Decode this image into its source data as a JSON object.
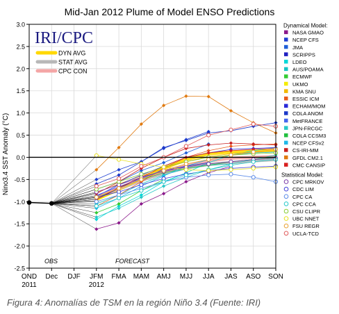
{
  "caption": "Figura 4: Anomalías de TSM en la región Niño 3.4 (Fuente: IRI)",
  "chart_data": {
    "type": "line",
    "title": "Mid-Jan 2012 Plume of Model ENSO Predictions",
    "ylabel": "Nino3.4 SST Anomaly (°C)",
    "ylim": [
      -2.5,
      3.0
    ],
    "yticks": [
      -2.5,
      -2.0,
      -1.5,
      -1.0,
      -0.5,
      0.0,
      0.5,
      1.0,
      1.5,
      2.0,
      2.5,
      3.0
    ],
    "categories": [
      "OND",
      "Dec",
      "DJF",
      "JFM",
      "FMA",
      "MAM",
      "AMJ",
      "MJJ",
      "JJA",
      "JAS",
      "ASO",
      "SON"
    ],
    "year_labels": [
      {
        "category": "OND",
        "text": "2011"
      },
      {
        "category": "JFM",
        "text": "2012"
      }
    ],
    "grid": true,
    "inset_labels": {
      "logo": "IRI/CPC",
      "obs": "OBS",
      "forecast": "FORECAST"
    },
    "averages_legend": [
      {
        "name": "DYN AVG",
        "color": "#ffd800"
      },
      {
        "name": "STAT AVG",
        "color": "#b8b8b8"
      },
      {
        "name": "CPC CON",
        "color": "#f4a6a6"
      }
    ],
    "observed": {
      "x": [
        "OND",
        "Dec"
      ],
      "values": [
        -1.02,
        -1.04
      ]
    },
    "dynamical_title": "Dynamical Model:",
    "statistical_title": "Statistical Model:",
    "series": [
      {
        "name": "NASA GMAO",
        "group": "dynamical",
        "color": "#8b1a8b",
        "values": [
          null,
          null,
          null,
          -1.62,
          -1.48,
          -1.05,
          -0.82,
          -0.55,
          -0.35,
          -0.2,
          null,
          null
        ]
      },
      {
        "name": "NCEP CFS",
        "group": "dynamical",
        "color": "#1f3fd1",
        "values": [
          null,
          null,
          null,
          -0.5,
          -0.28,
          -0.1,
          0.2,
          0.4,
          0.58,
          null,
          null,
          null
        ]
      },
      {
        "name": "JMA",
        "group": "dynamical",
        "color": "#1f5fd8",
        "values": [
          null,
          null,
          null,
          -0.72,
          -0.55,
          -0.3,
          -0.12,
          0.1,
          0.3,
          null,
          null,
          null
        ]
      },
      {
        "name": "SCRIPPS",
        "group": "dynamical",
        "color": "#2020c0",
        "values": [
          null,
          null,
          null,
          -0.95,
          -0.7,
          -0.45,
          -0.3,
          -0.2,
          -0.12,
          null,
          null,
          null
        ]
      },
      {
        "name": "LDEO",
        "group": "dynamical",
        "color": "#00d8d8",
        "values": [
          null,
          null,
          null,
          -1.4,
          -1.1,
          -0.85,
          -0.55,
          -0.35,
          -0.12,
          0.05,
          0.15,
          0.22
        ]
      },
      {
        "name": "AUS/POAMA",
        "group": "dynamical",
        "color": "#17c4c4",
        "values": [
          null,
          null,
          null,
          -1.05,
          -0.85,
          -0.6,
          -0.4,
          -0.25,
          -0.18,
          -0.15,
          null,
          null
        ]
      },
      {
        "name": "ECMWF",
        "group": "dynamical",
        "color": "#33cc33",
        "values": [
          null,
          null,
          null,
          -1.25,
          -1.05,
          -0.75,
          -0.5,
          null,
          null,
          null,
          null,
          null
        ]
      },
      {
        "name": "UKMO",
        "group": "dynamical",
        "color": "#f4ec00",
        "values": [
          null,
          null,
          null,
          -0.98,
          -0.75,
          -0.5,
          -0.3,
          null,
          null,
          null,
          null,
          null
        ]
      },
      {
        "name": "KMA SNU",
        "group": "dynamical",
        "color": "#f2b800",
        "values": [
          null,
          null,
          null,
          -0.8,
          -0.6,
          -0.42,
          -0.25,
          -0.1,
          0.02,
          0.08,
          0.12,
          0.15
        ]
      },
      {
        "name": "ESSIC ICM",
        "group": "dynamical",
        "color": "#e85a1c",
        "values": [
          null,
          null,
          null,
          -1.1,
          -0.85,
          -0.55,
          -0.25,
          0.0,
          0.15,
          0.25,
          0.28,
          0.3
        ]
      },
      {
        "name": "ECHAM/MOM",
        "group": "dynamical",
        "color": "#2a2ad8",
        "values": [
          null,
          null,
          null,
          -0.88,
          -0.62,
          -0.4,
          -0.2,
          0.0,
          0.1,
          0.18,
          0.2,
          0.22
        ]
      },
      {
        "name": "COLA ANOM",
        "group": "dynamical",
        "color": "#1c38c8",
        "values": [
          null,
          null,
          null,
          -0.6,
          -0.4,
          -0.1,
          0.22,
          0.38,
          0.55,
          0.6,
          0.7,
          0.78
        ]
      },
      {
        "name": "MetFRANCE",
        "group": "dynamical",
        "color": "#4466ee",
        "values": [
          null,
          null,
          null,
          -0.86,
          -0.66,
          -0.48,
          -0.28,
          null,
          null,
          null,
          null,
          null
        ]
      },
      {
        "name": "JPN-FRCGC",
        "group": "dynamical",
        "color": "#28c8c8",
        "values": [
          null,
          null,
          null,
          -1.35,
          -1.15,
          -0.9,
          -0.65,
          -0.45,
          -0.28,
          -0.15,
          -0.05,
          0.05
        ]
      },
      {
        "name": "COLA CCSM3",
        "group": "dynamical",
        "color": "#22c040",
        "values": [
          null,
          null,
          null,
          -0.92,
          -0.7,
          -0.5,
          -0.35,
          -0.25,
          -0.18,
          -0.1,
          -0.05,
          0.0
        ]
      },
      {
        "name": "NCEP CFSv2",
        "group": "dynamical",
        "color": "#1fb8e8",
        "values": [
          null,
          null,
          null,
          -1.15,
          -0.92,
          -0.65,
          -0.42,
          -0.2,
          -0.05,
          0.05,
          0.1,
          0.12
        ]
      },
      {
        "name": "CS-IRI-MM",
        "group": "dynamical",
        "color": "#c81e1e",
        "values": [
          null,
          null,
          null,
          -0.82,
          -0.55,
          -0.25,
          0.0,
          0.2,
          0.28,
          0.32,
          0.3,
          0.28
        ]
      },
      {
        "name": "GFDL CM2.1",
        "group": "dynamical",
        "color": "#e07a10",
        "values": [
          null,
          null,
          null,
          -0.28,
          0.22,
          0.75,
          1.17,
          1.38,
          1.37,
          1.05,
          0.78,
          0.55
        ]
      },
      {
        "name": "CMC CANSIP",
        "group": "dynamical",
        "color": "#d82020",
        "values": [
          null,
          null,
          null,
          -0.95,
          -0.68,
          -0.45,
          -0.2,
          0.0,
          0.1,
          0.15,
          0.18,
          0.2
        ]
      },
      {
        "name": "CPC MRKOV",
        "group": "statistical",
        "color": "#7a3aa8",
        "values": [
          null,
          null,
          null,
          -0.78,
          -0.62,
          -0.45,
          -0.32,
          -0.22,
          -0.15,
          -0.1,
          -0.05,
          -0.02
        ]
      },
      {
        "name": "CDC LIM",
        "group": "statistical",
        "color": "#3f3fd8",
        "values": [
          null,
          null,
          null,
          -0.9,
          -0.78,
          -0.62,
          -0.48,
          -0.38,
          -0.3,
          -0.25,
          -0.22,
          -0.2
        ]
      },
      {
        "name": "CPC CA",
        "group": "statistical",
        "color": "#5a8ae8",
        "values": [
          null,
          null,
          null,
          -1.0,
          -0.85,
          -0.7,
          -0.55,
          -0.45,
          -0.4,
          -0.38,
          -0.45,
          -0.55
        ]
      },
      {
        "name": "CPC CCA",
        "group": "statistical",
        "color": "#22c8c8",
        "values": [
          null,
          null,
          null,
          -1.1,
          -0.92,
          -0.75,
          -0.55,
          -0.4,
          -0.28,
          -0.18,
          -0.1,
          -0.05
        ]
      },
      {
        "name": "CSU CLIPR",
        "group": "statistical",
        "color": "#88cc33",
        "values": [
          null,
          null,
          null,
          -0.72,
          -0.55,
          -0.38,
          -0.22,
          -0.1,
          0.0,
          0.05,
          0.08,
          0.1
        ]
      },
      {
        "name": "UBC NNET",
        "group": "statistical",
        "color": "#e8e020",
        "values": [
          null,
          null,
          null,
          0.04,
          -0.05,
          -0.15,
          -0.22,
          -0.28,
          -0.3,
          -0.28,
          -0.25,
          -0.22
        ]
      },
      {
        "name": "FSU REGR",
        "group": "statistical",
        "color": "#e8a030",
        "values": [
          null,
          null,
          null,
          -0.9,
          -0.7,
          -0.5,
          -0.3,
          -0.15,
          -0.05,
          0.05,
          0.12,
          0.18
        ]
      },
      {
        "name": "UCLA-TCD",
        "group": "statistical",
        "color": "#e05a5a",
        "values": [
          null,
          null,
          null,
          -0.65,
          -0.48,
          -0.2,
          0.0,
          0.25,
          0.5,
          0.62,
          0.75,
          0.7
        ]
      }
    ],
    "averages": [
      {
        "name": "DYN AVG",
        "color": "#ffd800",
        "values": [
          null,
          null,
          null,
          -0.95,
          -0.72,
          -0.48,
          -0.25,
          -0.05,
          0.08,
          0.12,
          0.14,
          0.15
        ]
      },
      {
        "name": "STAT AVG",
        "color": "#b8b8b8",
        "values": [
          null,
          null,
          null,
          -0.9,
          -0.72,
          -0.52,
          -0.36,
          -0.24,
          -0.16,
          -0.12,
          -0.08,
          -0.05
        ]
      },
      {
        "name": "CPC CON",
        "color": "#f4a6a6",
        "values": [
          null,
          null,
          null,
          -0.9,
          -0.7,
          -0.5,
          -0.32,
          -0.18,
          -0.08,
          -0.02,
          0.0,
          0.02
        ]
      }
    ]
  }
}
